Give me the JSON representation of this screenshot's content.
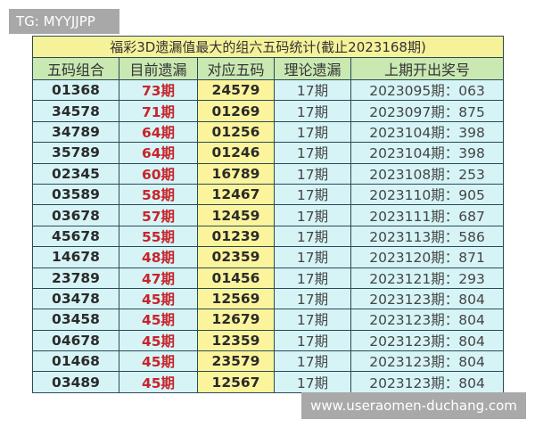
{
  "watermarks": {
    "top_left": "TG: MYYJJPP",
    "bottom_right": "www.useraomen-duchang.com"
  },
  "title": "福彩3D遗漏值最大的组六五码统计(截止2023168期)",
  "headers": [
    "五码组合",
    "目前遗漏",
    "对应五码",
    "理论遗漏",
    "上期开出奖号"
  ],
  "colors": {
    "title_bg": "#f6f29a",
    "header_bg": "#c9e8b2",
    "row_bg": "#d6f4f6",
    "highlight_col_bg": "#fbf49c",
    "miss_text": "#c8242c"
  },
  "rows": [
    [
      "01368",
      "73期",
      "24579",
      "17期",
      "2023095期：063"
    ],
    [
      "34578",
      "71期",
      "01269",
      "17期",
      "2023097期：875"
    ],
    [
      "34789",
      "64期",
      "01256",
      "17期",
      "2023104期：398"
    ],
    [
      "35789",
      "64期",
      "01246",
      "17期",
      "2023104期：398"
    ],
    [
      "02345",
      "60期",
      "16789",
      "17期",
      "2023108期：253"
    ],
    [
      "03589",
      "58期",
      "12467",
      "17期",
      "2023110期：905"
    ],
    [
      "03678",
      "57期",
      "12459",
      "17期",
      "2023111期：687"
    ],
    [
      "45678",
      "55期",
      "01239",
      "17期",
      "2023113期：586"
    ],
    [
      "14678",
      "48期",
      "02359",
      "17期",
      "2023120期：871"
    ],
    [
      "23789",
      "47期",
      "01456",
      "17期",
      "2023121期：293"
    ],
    [
      "03478",
      "45期",
      "12569",
      "17期",
      "2023123期：804"
    ],
    [
      "03458",
      "45期",
      "12679",
      "17期",
      "2023123期：804"
    ],
    [
      "04678",
      "45期",
      "12359",
      "17期",
      "2023123期：804"
    ],
    [
      "01468",
      "45期",
      "23579",
      "17期",
      "2023123期：804"
    ],
    [
      "03489",
      "45期",
      "12567",
      "17期",
      "2023123期：804"
    ]
  ]
}
